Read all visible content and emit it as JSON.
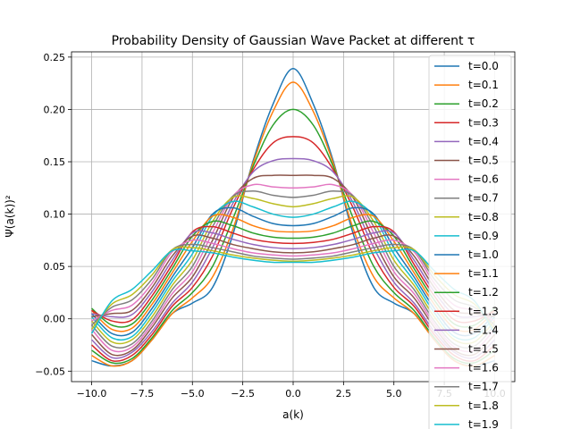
{
  "chart_data": {
    "type": "line",
    "title": "Probability Density of Gaussian Wave Packet at different τ",
    "xlabel": "a(k)",
    "ylabel": "Ψ(a(k))²",
    "xlim": [
      -11.0,
      11.0
    ],
    "ylim": [
      -0.06,
      0.255
    ],
    "xticks": [
      -10.0,
      -7.5,
      -5.0,
      -2.5,
      0.0,
      2.5,
      5.0,
      7.5,
      10.0
    ],
    "xtick_labels": [
      "−10.0",
      "−7.5",
      "−5.0",
      "−2.5",
      "0.0",
      "2.5",
      "5.0",
      "7.5",
      "10.0"
    ],
    "yticks": [
      -0.05,
      0.0,
      0.05,
      0.1,
      0.15,
      0.2,
      0.25
    ],
    "ytick_labels": [
      "−0.05",
      "0.00",
      "0.05",
      "0.10",
      "0.15",
      "0.20",
      "0.25"
    ],
    "grid": true,
    "legend_position": "right",
    "x": [
      -10,
      -9,
      -8,
      -7,
      -6,
      -5,
      -4,
      -3,
      -2,
      -1,
      0,
      1,
      2,
      3,
      4,
      5,
      6,
      7,
      8,
      9,
      10
    ],
    "series": [
      {
        "name": "t=0.0",
        "color": "#1f77b4",
        "values": [
          -0.04,
          -0.045,
          -0.04,
          -0.02,
          0.005,
          0.015,
          0.03,
          0.08,
          0.15,
          0.205,
          0.239,
          0.205,
          0.15,
          0.08,
          0.03,
          0.015,
          0.005,
          -0.02,
          -0.04,
          -0.045,
          -0.04
        ]
      },
      {
        "name": "t=0.1",
        "color": "#ff7f0e",
        "values": [
          -0.035,
          -0.045,
          -0.04,
          -0.02,
          0.005,
          0.02,
          0.04,
          0.085,
          0.148,
          0.198,
          0.226,
          0.198,
          0.148,
          0.085,
          0.04,
          0.02,
          0.005,
          -0.02,
          -0.04,
          -0.045,
          -0.035
        ]
      },
      {
        "name": "t=0.2",
        "color": "#2ca02c",
        "values": [
          -0.03,
          -0.042,
          -0.038,
          -0.018,
          0.008,
          0.025,
          0.05,
          0.095,
          0.145,
          0.185,
          0.2,
          0.185,
          0.145,
          0.095,
          0.05,
          0.025,
          0.008,
          -0.018,
          -0.038,
          -0.042,
          -0.03
        ]
      },
      {
        "name": "t=0.3",
        "color": "#d62728",
        "values": [
          -0.025,
          -0.04,
          -0.035,
          -0.015,
          0.012,
          0.03,
          0.06,
          0.105,
          0.142,
          0.168,
          0.174,
          0.168,
          0.142,
          0.105,
          0.06,
          0.03,
          0.012,
          -0.015,
          -0.035,
          -0.04,
          -0.025
        ]
      },
      {
        "name": "t=0.4",
        "color": "#9467bd",
        "values": [
          -0.02,
          -0.037,
          -0.032,
          -0.012,
          0.015,
          0.035,
          0.068,
          0.11,
          0.14,
          0.151,
          0.153,
          0.151,
          0.14,
          0.11,
          0.068,
          0.035,
          0.015,
          -0.012,
          -0.032,
          -0.037,
          -0.02
        ]
      },
      {
        "name": "t=0.5",
        "color": "#8c564b",
        "values": [
          -0.015,
          -0.034,
          -0.03,
          -0.008,
          0.02,
          0.04,
          0.075,
          0.115,
          0.134,
          0.137,
          0.137,
          0.137,
          0.134,
          0.115,
          0.075,
          0.04,
          0.02,
          -0.008,
          -0.03,
          -0.034,
          -0.015
        ]
      },
      {
        "name": "t=0.6",
        "color": "#e377c2",
        "values": [
          -0.01,
          -0.03,
          -0.027,
          -0.005,
          0.024,
          0.045,
          0.082,
          0.117,
          0.128,
          0.126,
          0.125,
          0.126,
          0.128,
          0.117,
          0.082,
          0.045,
          0.024,
          -0.005,
          -0.027,
          -0.03,
          -0.01
        ]
      },
      {
        "name": "t=0.7",
        "color": "#7f7f7f",
        "values": [
          -0.006,
          -0.026,
          -0.024,
          -0.002,
          0.028,
          0.05,
          0.088,
          0.117,
          0.122,
          0.118,
          0.116,
          0.118,
          0.122,
          0.117,
          0.088,
          0.05,
          0.028,
          -0.002,
          -0.024,
          -0.026,
          -0.006
        ]
      },
      {
        "name": "t=0.8",
        "color": "#bcbd22",
        "values": [
          -0.002,
          -0.022,
          -0.02,
          0.002,
          0.032,
          0.056,
          0.093,
          0.116,
          0.115,
          0.11,
          0.107,
          0.11,
          0.115,
          0.116,
          0.093,
          0.056,
          0.032,
          0.002,
          -0.02,
          -0.022,
          -0.002
        ]
      },
      {
        "name": "t=0.9",
        "color": "#17becf",
        "values": [
          0.002,
          -0.018,
          -0.017,
          0.006,
          0.036,
          0.062,
          0.098,
          0.112,
          0.107,
          0.1,
          0.097,
          0.1,
          0.107,
          0.112,
          0.098,
          0.062,
          0.036,
          0.006,
          -0.017,
          -0.018,
          0.002
        ]
      },
      {
        "name": "t=1.0",
        "color": "#1f77b4",
        "values": [
          0.005,
          -0.014,
          -0.013,
          0.01,
          0.04,
          0.068,
          0.1,
          0.106,
          0.098,
          0.091,
          0.089,
          0.091,
          0.098,
          0.106,
          0.1,
          0.068,
          0.04,
          0.01,
          -0.013,
          -0.014,
          0.005
        ]
      },
      {
        "name": "t=1.1",
        "color": "#ff7f0e",
        "values": [
          0.008,
          -0.01,
          -0.009,
          0.014,
          0.044,
          0.074,
          0.098,
          0.097,
          0.089,
          0.084,
          0.083,
          0.084,
          0.089,
          0.097,
          0.098,
          0.074,
          0.044,
          0.014,
          -0.009,
          -0.01,
          0.008
        ]
      },
      {
        "name": "t=1.2",
        "color": "#2ca02c",
        "values": [
          0.01,
          -0.006,
          -0.005,
          0.018,
          0.048,
          0.079,
          0.093,
          0.089,
          0.082,
          0.078,
          0.077,
          0.078,
          0.082,
          0.089,
          0.093,
          0.079,
          0.048,
          0.018,
          -0.005,
          -0.006,
          0.01
        ]
      },
      {
        "name": "t=1.3",
        "color": "#d62728",
        "values": [
          0.008,
          -0.002,
          -0.001,
          0.022,
          0.052,
          0.083,
          0.088,
          0.082,
          0.076,
          0.073,
          0.072,
          0.073,
          0.076,
          0.082,
          0.088,
          0.083,
          0.052,
          0.022,
          -0.001,
          -0.002,
          0.008
        ]
      },
      {
        "name": "t=1.4",
        "color": "#9467bd",
        "values": [
          0.005,
          0.002,
          0.004,
          0.026,
          0.056,
          0.082,
          0.082,
          0.076,
          0.071,
          0.068,
          0.067,
          0.068,
          0.071,
          0.076,
          0.082,
          0.082,
          0.056,
          0.026,
          0.004,
          0.002,
          0.005
        ]
      },
      {
        "name": "t=1.5",
        "color": "#8c564b",
        "values": [
          0.002,
          0.005,
          0.008,
          0.03,
          0.06,
          0.079,
          0.077,
          0.071,
          0.067,
          0.064,
          0.063,
          0.064,
          0.067,
          0.071,
          0.077,
          0.079,
          0.06,
          0.03,
          0.008,
          0.005,
          0.002
        ]
      },
      {
        "name": "t=1.6",
        "color": "#e377c2",
        "values": [
          -0.002,
          0.008,
          0.013,
          0.034,
          0.064,
          0.075,
          0.072,
          0.067,
          0.063,
          0.061,
          0.06,
          0.061,
          0.063,
          0.067,
          0.072,
          0.075,
          0.064,
          0.034,
          0.013,
          0.008,
          -0.002
        ]
      },
      {
        "name": "t=1.7",
        "color": "#7f7f7f",
        "values": [
          -0.006,
          0.011,
          0.018,
          0.038,
          0.066,
          0.071,
          0.068,
          0.064,
          0.06,
          0.058,
          0.057,
          0.058,
          0.06,
          0.064,
          0.068,
          0.071,
          0.066,
          0.038,
          0.018,
          0.011,
          -0.006
        ]
      },
      {
        "name": "t=1.8",
        "color": "#bcbd22",
        "values": [
          -0.01,
          0.014,
          0.023,
          0.042,
          0.066,
          0.068,
          0.065,
          0.061,
          0.058,
          0.056,
          0.055,
          0.056,
          0.058,
          0.061,
          0.065,
          0.068,
          0.066,
          0.042,
          0.023,
          0.014,
          -0.01
        ]
      },
      {
        "name": "t=1.9",
        "color": "#17becf",
        "values": [
          -0.014,
          0.017,
          0.028,
          0.046,
          0.065,
          0.065,
          0.063,
          0.059,
          0.056,
          0.054,
          0.054,
          0.054,
          0.056,
          0.059,
          0.063,
          0.065,
          0.065,
          0.046,
          0.028,
          0.017,
          -0.014
        ]
      }
    ]
  }
}
